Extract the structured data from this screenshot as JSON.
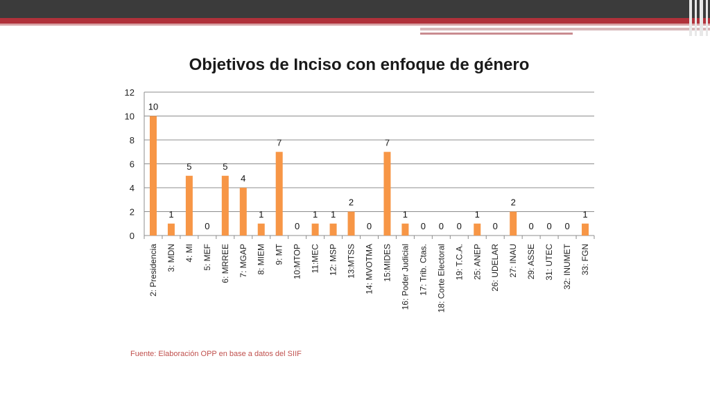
{
  "colors": {
    "bar": "#f79646",
    "grid": "#8c8c8c",
    "footnote": "#c0504d"
  },
  "footnote": "Fuente: Elaboración OPP en base a datos del SIIF",
  "chart_data": {
    "type": "bar",
    "title": "Objetivos de Inciso con enfoque de género",
    "xlabel": "",
    "ylabel": "",
    "ylim": [
      0,
      12
    ],
    "yticks": [
      0,
      2,
      4,
      6,
      8,
      10,
      12
    ],
    "grid": true,
    "legend": "none",
    "categories": [
      "2: Presidencia",
      "3: MDN",
      "4: MI",
      "5: MEF",
      "6: MRREE",
      "7: MGAP",
      "8: MIEM",
      "9: MT",
      "10:MTOP",
      "11:MEC",
      "12: MSP",
      "13:MTSS",
      "14: MVOTMA",
      "15:MIDES",
      "16: Poder Judicial",
      "17: Trib. Ctas.",
      "18: Corte Electoral",
      "19: T.C.A.",
      "25: ANEP",
      "26: UDELAR",
      "27: INAU",
      "29: ASSE",
      "31: UTEC",
      "32: INUMET",
      "33: FGN"
    ],
    "values": [
      10,
      1,
      5,
      0,
      5,
      4,
      1,
      7,
      0,
      1,
      1,
      2,
      0,
      7,
      1,
      0,
      0,
      0,
      1,
      0,
      2,
      0,
      0,
      0,
      1
    ]
  }
}
